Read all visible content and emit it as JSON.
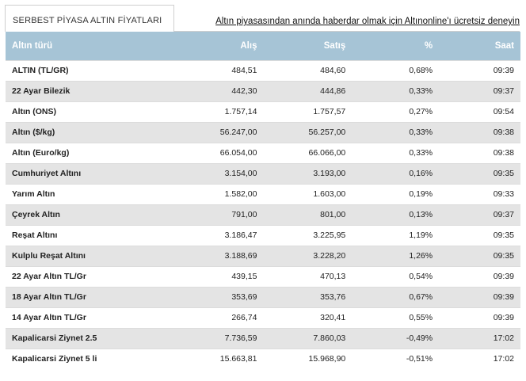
{
  "header": {
    "tab_title": "SERBEST PİYASA ALTIN FİYATLARI",
    "promo_link": "Altın piyasasından anında haberdar olmak için Altınonline'ı ücretsiz deneyin"
  },
  "table": {
    "columns": [
      "Altın türü",
      "Alış",
      "Satış",
      "%",
      "Saat"
    ],
    "rows": [
      {
        "name": "ALTIN (TL/GR)",
        "alis": "484,51",
        "satis": "484,60",
        "pct": "0,68%",
        "saat": "09:39"
      },
      {
        "name": "22 Ayar Bilezik",
        "alis": "442,30",
        "satis": "444,86",
        "pct": "0,33%",
        "saat": "09:37"
      },
      {
        "name": "Altın (ONS)",
        "alis": "1.757,14",
        "satis": "1.757,57",
        "pct": "0,27%",
        "saat": "09:54"
      },
      {
        "name": "Altın ($/kg)",
        "alis": "56.247,00",
        "satis": "56.257,00",
        "pct": "0,33%",
        "saat": "09:38"
      },
      {
        "name": "Altın (Euro/kg)",
        "alis": "66.054,00",
        "satis": "66.066,00",
        "pct": "0,33%",
        "saat": "09:38"
      },
      {
        "name": "Cumhuriyet Altını",
        "alis": "3.154,00",
        "satis": "3.193,00",
        "pct": "0,16%",
        "saat": "09:35"
      },
      {
        "name": "Yarım Altın",
        "alis": "1.582,00",
        "satis": "1.603,00",
        "pct": "0,19%",
        "saat": "09:33"
      },
      {
        "name": "Çeyrek Altın",
        "alis": "791,00",
        "satis": "801,00",
        "pct": "0,13%",
        "saat": "09:37"
      },
      {
        "name": "Reşat Altını",
        "alis": "3.186,47",
        "satis": "3.225,95",
        "pct": "1,19%",
        "saat": "09:35"
      },
      {
        "name": "Kulplu Reşat Altını",
        "alis": "3.188,69",
        "satis": "3.228,20",
        "pct": "1,26%",
        "saat": "09:35"
      },
      {
        "name": "22 Ayar Altın TL/Gr",
        "alis": "439,15",
        "satis": "470,13",
        "pct": "0,54%",
        "saat": "09:39"
      },
      {
        "name": "18 Ayar Altın TL/Gr",
        "alis": "353,69",
        "satis": "353,76",
        "pct": "0,67%",
        "saat": "09:39"
      },
      {
        "name": "14 Ayar Altın TL/Gr",
        "alis": "266,74",
        "satis": "320,41",
        "pct": "0,55%",
        "saat": "09:39"
      },
      {
        "name": "Kapalicarsi Ziynet 2.5",
        "alis": "7.736,59",
        "satis": "7.860,03",
        "pct": "-0,49%",
        "saat": "17:02"
      },
      {
        "name": "Kapalicarsi Ziynet 5 li",
        "alis": "15.663,81",
        "satis": "15.968,90",
        "pct": "-0,51%",
        "saat": "17:02"
      }
    ]
  },
  "colors": {
    "header_bg": "#a6c4d6",
    "row_alt_bg": "#e4e4e4"
  }
}
